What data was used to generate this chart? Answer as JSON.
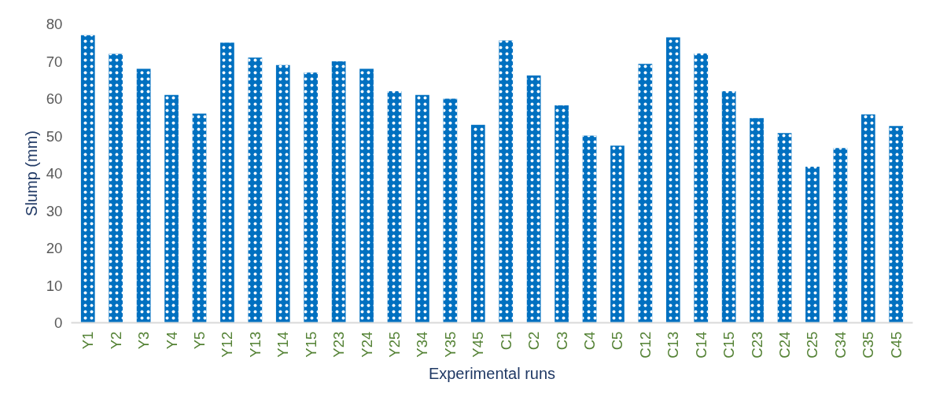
{
  "chart_data": {
    "type": "bar",
    "xlabel": "Experimental runs",
    "ylabel": "Slump (mm)",
    "categories": [
      "Y1",
      "Y2",
      "Y3",
      "Y4",
      "Y5",
      "Y12",
      "Y13",
      "Y14",
      "Y15",
      "Y23",
      "Y24",
      "Y25",
      "Y34",
      "Y35",
      "Y45",
      "C1",
      "C2",
      "C3",
      "C4",
      "C5",
      "C12",
      "C13",
      "C14",
      "C15",
      "C23",
      "C24",
      "C25",
      "C34",
      "C35",
      "C45"
    ],
    "values": [
      77,
      72,
      68,
      61,
      56,
      75,
      71,
      69,
      67,
      70,
      68,
      62,
      61,
      60,
      53,
      75.6,
      66.2,
      58.2,
      50.1,
      47.4,
      69.3,
      76.4,
      72.1,
      62,
      54.8,
      50.8,
      41.8,
      46.8,
      55.8,
      52.7
    ],
    "color": "#0070c0",
    "ylim": [
      0,
      80
    ],
    "yticks": [
      0,
      10,
      20,
      30,
      40,
      50,
      60,
      70,
      80
    ],
    "grid": false
  }
}
